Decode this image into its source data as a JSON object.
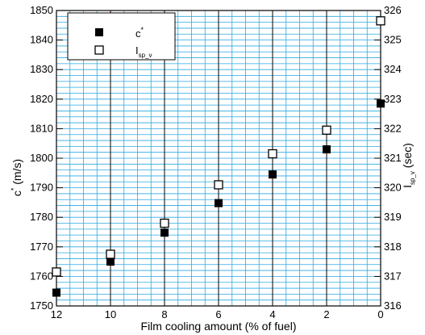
{
  "chart_data": {
    "type": "scatter",
    "xlabel": "Film cooling amount (% of fuel)",
    "ylabel_left": {
      "base": "c",
      "sup": "*",
      "rest": " (m/s)"
    },
    "ylabel_right": {
      "base": "I",
      "sub": "sp_v",
      "rest": " (sec)"
    },
    "x_ticks": [
      "12",
      "10",
      "8",
      "6",
      "4",
      "2",
      "0"
    ],
    "y_left_ticks": [
      "1750",
      "1760",
      "1770",
      "1780",
      "1790",
      "1800",
      "1810",
      "1820",
      "1830",
      "1840",
      "1850"
    ],
    "y_right_ticks": [
      "316",
      "317",
      "318",
      "319",
      "320",
      "321",
      "322",
      "323",
      "324",
      "325",
      "326"
    ],
    "x_range": [
      12,
      0
    ],
    "y_left_range": [
      1750,
      1850
    ],
    "y_right_range": [
      316,
      326
    ],
    "grid": true,
    "grid_color": "#2aa9e0",
    "legend_position": "top-left",
    "series": [
      {
        "name": {
          "base": "c",
          "sup": "*"
        },
        "axis": "left",
        "marker": "filled-square",
        "x": [
          12,
          10,
          8,
          6,
          4,
          2,
          0
        ],
        "y": [
          1754.5,
          1765,
          1774.8,
          1784.8,
          1794.5,
          1803,
          1818.5
        ]
      },
      {
        "name": {
          "base": "I",
          "sub": "sp_v"
        },
        "axis": "right",
        "marker": "open-square",
        "x": [
          12,
          10,
          8,
          6,
          4,
          2,
          0
        ],
        "y": [
          317.15,
          317.75,
          318.8,
          320.1,
          321.15,
          321.95,
          325.65
        ]
      }
    ]
  }
}
